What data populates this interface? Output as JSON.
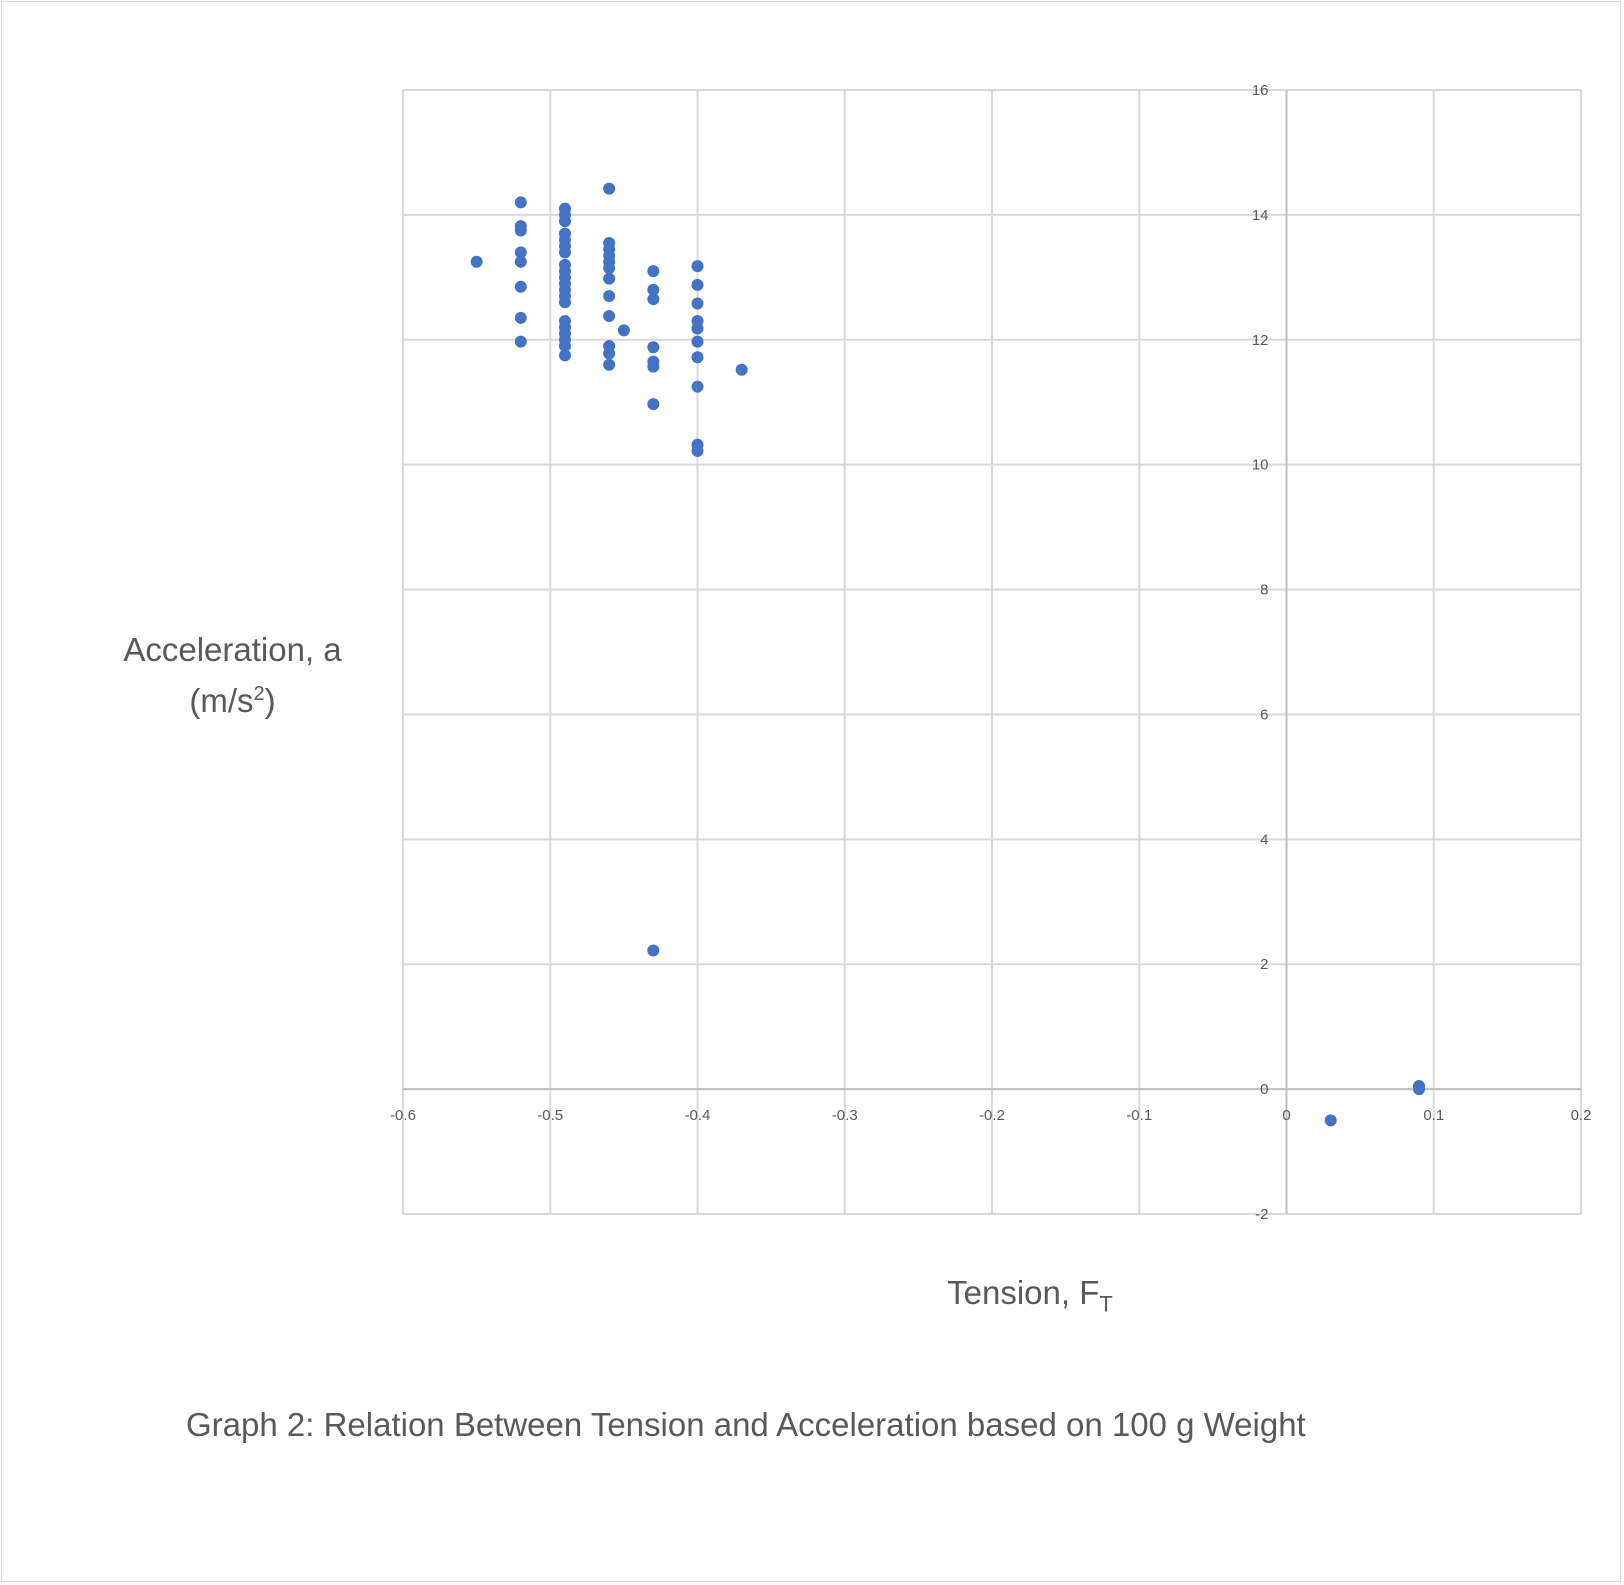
{
  "chart_data": {
    "type": "scatter",
    "title": "",
    "xlabel_main": "Tension, F",
    "xlabel_sub": "T",
    "ylabel_line1": "Acceleration, a",
    "ylabel_line2_pre": "(m/s",
    "ylabel_line2_sup": "2",
    "ylabel_line2_post": ")",
    "xlim": [
      -0.6,
      0.2
    ],
    "ylim": [
      -2,
      16
    ],
    "x_ticks": [
      -0.6,
      -0.5,
      -0.4,
      -0.3,
      -0.2,
      -0.1,
      0,
      0.1,
      0.2
    ],
    "x_tick_labels": [
      "-0.6",
      "-0.5",
      "-0.4",
      "-0.3",
      "-0.2",
      "-0.1",
      "0",
      "0.1",
      "0.2"
    ],
    "y_ticks": [
      -2,
      0,
      2,
      4,
      6,
      8,
      10,
      12,
      14,
      16
    ],
    "y_tick_labels": [
      "-2",
      "0",
      "2",
      "4",
      "6",
      "8",
      "10",
      "12",
      "14",
      "16"
    ],
    "grid": true,
    "marker_color": "#4472c4",
    "grid_color": "#d9d9d9",
    "axis_color": "#bfbfbf",
    "series": [
      {
        "points": [
          [
            -0.55,
            13.25
          ],
          [
            -0.52,
            14.2
          ],
          [
            -0.52,
            13.82
          ],
          [
            -0.52,
            13.75
          ],
          [
            -0.52,
            13.4
          ],
          [
            -0.52,
            13.25
          ],
          [
            -0.52,
            12.85
          ],
          [
            -0.52,
            12.35
          ],
          [
            -0.52,
            11.97
          ],
          [
            -0.49,
            14.1
          ],
          [
            -0.49,
            14.0
          ],
          [
            -0.49,
            13.9
          ],
          [
            -0.49,
            13.7
          ],
          [
            -0.49,
            13.6
          ],
          [
            -0.49,
            13.5
          ],
          [
            -0.49,
            13.4
          ],
          [
            -0.49,
            13.2
          ],
          [
            -0.49,
            13.1
          ],
          [
            -0.49,
            13.0
          ],
          [
            -0.49,
            12.9
          ],
          [
            -0.49,
            12.8
          ],
          [
            -0.49,
            12.7
          ],
          [
            -0.49,
            12.6
          ],
          [
            -0.49,
            12.3
          ],
          [
            -0.49,
            12.2
          ],
          [
            -0.49,
            12.1
          ],
          [
            -0.49,
            12.0
          ],
          [
            -0.49,
            11.9
          ],
          [
            -0.49,
            11.75
          ],
          [
            -0.46,
            14.42
          ],
          [
            -0.46,
            13.55
          ],
          [
            -0.46,
            13.45
          ],
          [
            -0.46,
            13.35
          ],
          [
            -0.46,
            13.25
          ],
          [
            -0.46,
            13.15
          ],
          [
            -0.46,
            12.98
          ],
          [
            -0.46,
            12.7
          ],
          [
            -0.46,
            12.38
          ],
          [
            -0.46,
            11.9
          ],
          [
            -0.46,
            11.78
          ],
          [
            -0.46,
            11.6
          ],
          [
            -0.45,
            12.15
          ],
          [
            -0.43,
            13.1
          ],
          [
            -0.43,
            12.8
          ],
          [
            -0.43,
            12.65
          ],
          [
            -0.43,
            11.88
          ],
          [
            -0.43,
            11.65
          ],
          [
            -0.43,
            11.57
          ],
          [
            -0.43,
            10.97
          ],
          [
            -0.43,
            2.22
          ],
          [
            -0.4,
            13.18
          ],
          [
            -0.4,
            12.88
          ],
          [
            -0.4,
            12.58
          ],
          [
            -0.4,
            12.3
          ],
          [
            -0.4,
            12.18
          ],
          [
            -0.4,
            11.97
          ],
          [
            -0.4,
            11.72
          ],
          [
            -0.4,
            11.25
          ],
          [
            -0.4,
            10.32
          ],
          [
            -0.4,
            10.22
          ],
          [
            -0.37,
            11.52
          ],
          [
            0.03,
            -0.5
          ],
          [
            0.09,
            0.05
          ],
          [
            0.09,
            0.0
          ]
        ]
      }
    ]
  },
  "caption": "Graph 2: Relation Between Tension and Acceleration based on 100 g Weight"
}
